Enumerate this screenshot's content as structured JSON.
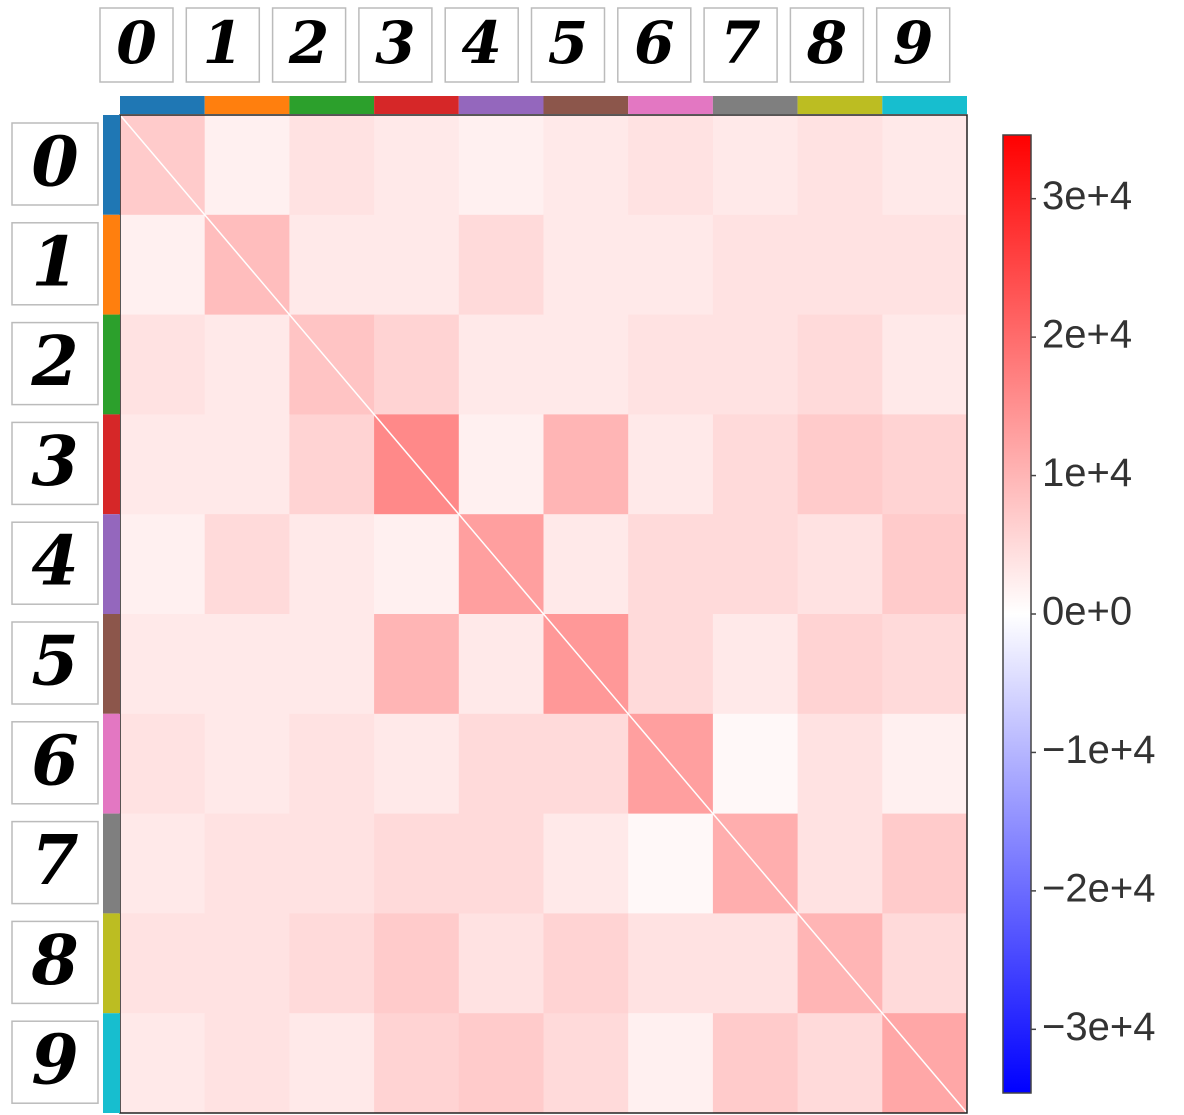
{
  "chart_data": {
    "type": "heatmap",
    "categories": [
      "0",
      "1",
      "2",
      "3",
      "4",
      "5",
      "6",
      "7",
      "8",
      "9"
    ],
    "category_colors": [
      "#1f77b4",
      "#ff7f0e",
      "#2ca02c",
      "#d62728",
      "#9467bd",
      "#8c564b",
      "#e377c2",
      "#7f7f7f",
      "#bcbd22",
      "#17becf"
    ],
    "values": [
      [
        7000,
        2000,
        4000,
        3000,
        2000,
        3000,
        4000,
        3000,
        4000,
        3000
      ],
      [
        2000,
        9000,
        3000,
        3000,
        5000,
        3000,
        3000,
        4000,
        4000,
        4000
      ],
      [
        4000,
        3000,
        8000,
        6000,
        3000,
        3000,
        4000,
        4000,
        5000,
        3000
      ],
      [
        3000,
        3000,
        6000,
        16000,
        2000,
        10000,
        3000,
        5000,
        7000,
        6000
      ],
      [
        2000,
        5000,
        3000,
        2000,
        13000,
        3000,
        5000,
        5000,
        4000,
        7000
      ],
      [
        3000,
        3000,
        3000,
        10000,
        3000,
        14000,
        5000,
        3000,
        6000,
        5000
      ],
      [
        4000,
        3000,
        4000,
        3000,
        5000,
        5000,
        13000,
        1000,
        4000,
        2000
      ],
      [
        3000,
        4000,
        4000,
        5000,
        5000,
        3000,
        1000,
        11000,
        4000,
        7000
      ],
      [
        4000,
        4000,
        5000,
        7000,
        4000,
        6000,
        4000,
        4000,
        10000,
        5000
      ],
      [
        3000,
        4000,
        3000,
        6000,
        7000,
        5000,
        2000,
        7000,
        5000,
        12000
      ]
    ],
    "colormap": "bwr",
    "zlim": [
      -34600,
      34600
    ],
    "zticks": [
      {
        "value": 30000,
        "label": "3e+4"
      },
      {
        "value": 20000,
        "label": "2e+4"
      },
      {
        "value": 10000,
        "label": "1e+4"
      },
      {
        "value": 0,
        "label": "0e+0"
      },
      {
        "value": -10000,
        "label": "−1e+4"
      },
      {
        "value": -20000,
        "label": "−2e+4"
      },
      {
        "value": -30000,
        "label": "−3e+4"
      }
    ]
  }
}
